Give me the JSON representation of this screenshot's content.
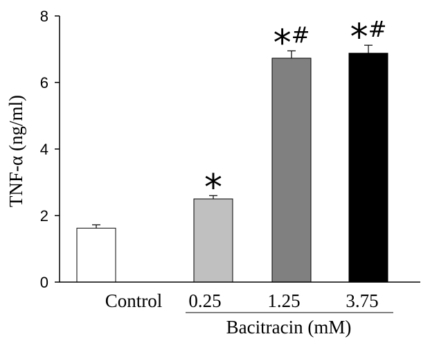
{
  "chart_data": {
    "type": "bar",
    "categories": [
      "Control",
      "0.25",
      "1.25",
      "3.75"
    ],
    "values": [
      1.62,
      2.5,
      6.73,
      6.88
    ],
    "errors": [
      0.1,
      0.1,
      0.22,
      0.24
    ],
    "bar_colors": [
      "#ffffff",
      "#c0c0c0",
      "#808080",
      "#000000"
    ],
    "annotations": [
      "",
      "*",
      "*#",
      "*#"
    ],
    "ylabel": "TNF-α (ng/ml)",
    "xlabel": "",
    "group_label": "Bacitracin (mM)",
    "ylim": [
      0,
      8
    ],
    "yticks": [
      "0",
      "2",
      "4",
      "6",
      "8"
    ],
    "grid": false,
    "legend": "none"
  }
}
